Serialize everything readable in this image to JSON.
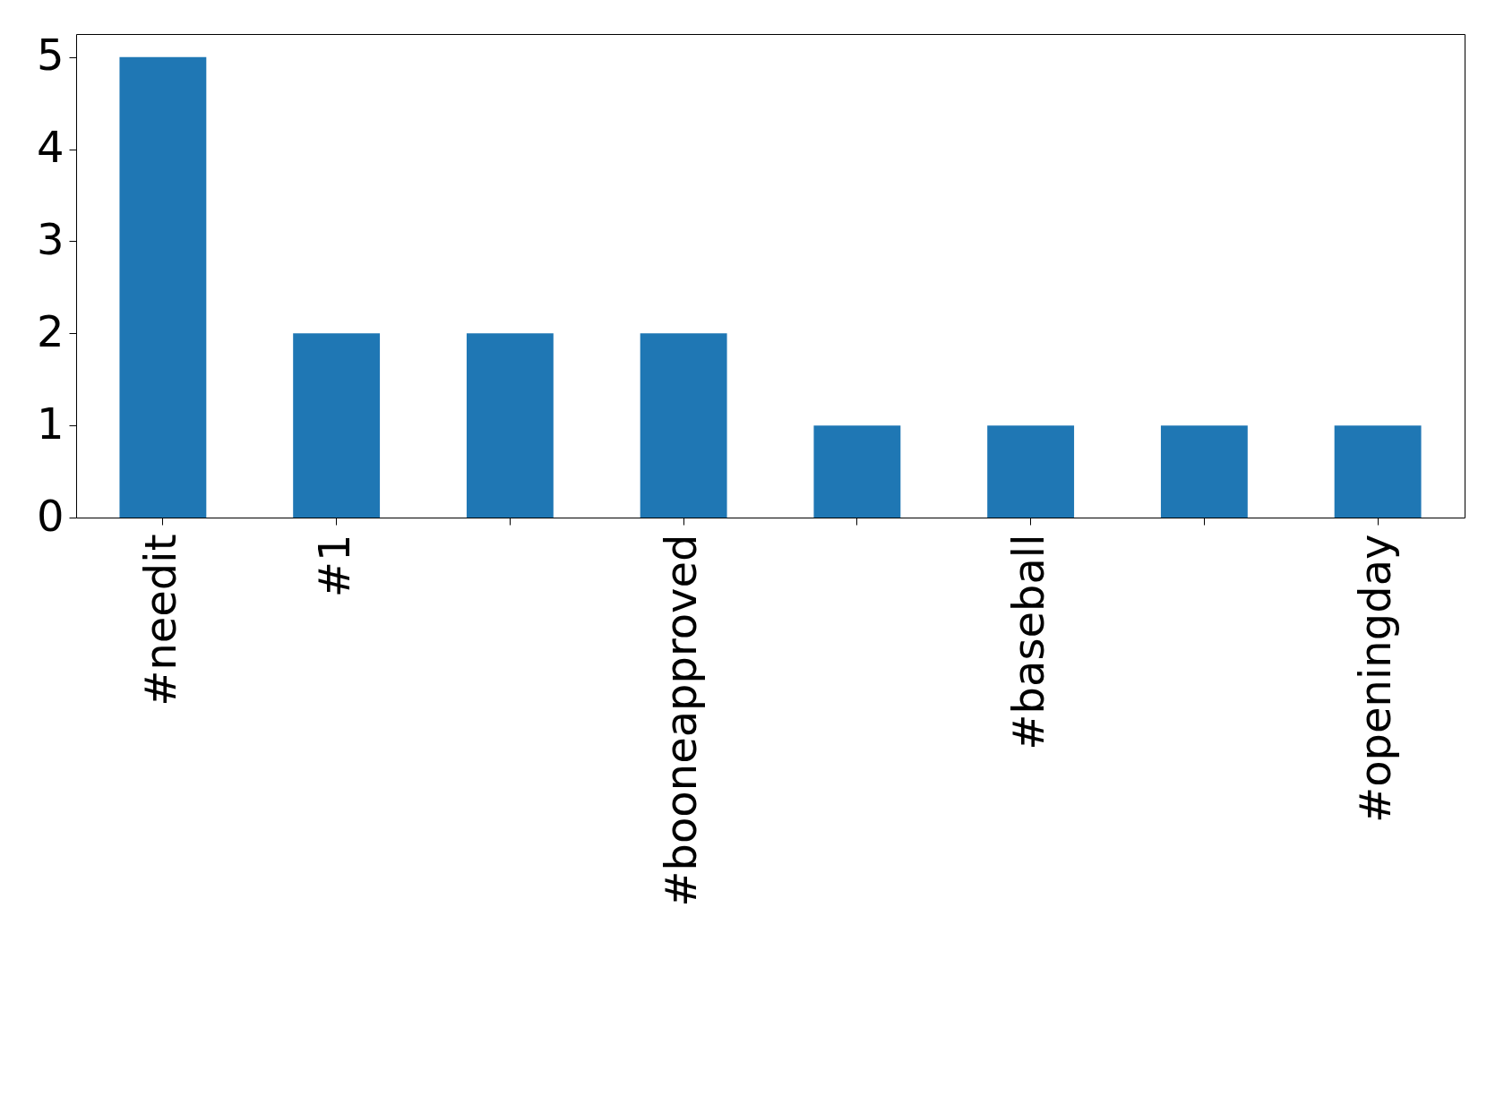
{
  "chart_data": {
    "type": "bar",
    "categories": [
      "#needit",
      "#1",
      null,
      "#booneapproved",
      null,
      "#baseball",
      null,
      "#openingday"
    ],
    "values": [
      5,
      2,
      2,
      2,
      1,
      1,
      1,
      1
    ],
    "color": "#1f77b4",
    "ylim": [
      0,
      5.25
    ],
    "yticks": [
      0,
      1,
      2,
      3,
      4,
      5
    ],
    "grid": false
  }
}
